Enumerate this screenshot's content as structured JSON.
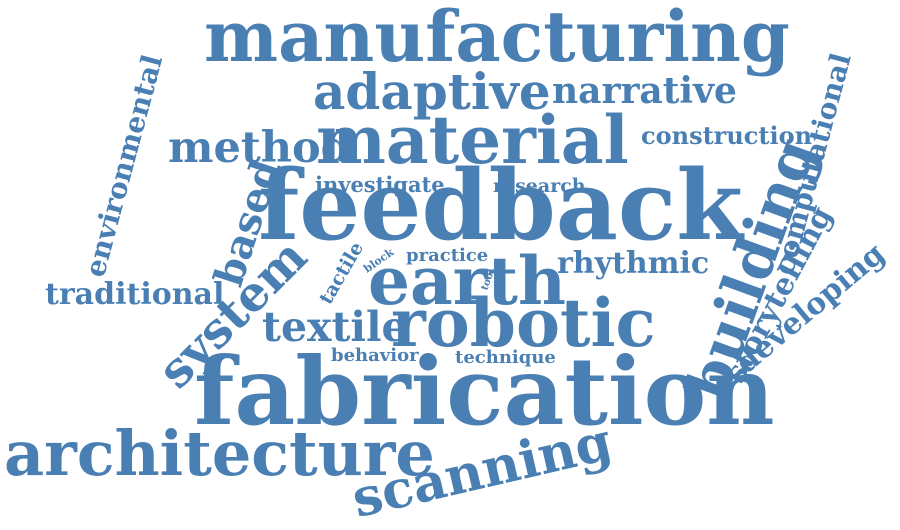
{
  "theme": {
    "word_color": "#4a7fb3",
    "background": "#ffffff"
  },
  "words": [
    {
      "text": "manufacturing",
      "emphasis": "large"
    },
    {
      "text": "adaptive",
      "emphasis": "medium"
    },
    {
      "text": "narrative",
      "emphasis": "medium"
    },
    {
      "text": "environmental",
      "emphasis": "small"
    },
    {
      "text": "method",
      "emphasis": "medium"
    },
    {
      "text": "material",
      "emphasis": "large"
    },
    {
      "text": "construction",
      "emphasis": "small"
    },
    {
      "text": "computational",
      "emphasis": "small"
    },
    {
      "text": "investigate",
      "emphasis": "small"
    },
    {
      "text": "research",
      "emphasis": "small"
    },
    {
      "text": "feedback",
      "emphasis": "largest"
    },
    {
      "text": "based",
      "emphasis": "medium"
    },
    {
      "text": "building",
      "emphasis": "large"
    },
    {
      "text": "tactile",
      "emphasis": "small"
    },
    {
      "text": "block",
      "emphasis": "tiny"
    },
    {
      "text": "practice",
      "emphasis": "small"
    },
    {
      "text": "tool",
      "emphasis": "tiny"
    },
    {
      "text": "earth",
      "emphasis": "large"
    },
    {
      "text": "rhythmic",
      "emphasis": "small"
    },
    {
      "text": "storytelling",
      "emphasis": "small"
    },
    {
      "text": "developing",
      "emphasis": "small"
    },
    {
      "text": "traditional",
      "emphasis": "small"
    },
    {
      "text": "system",
      "emphasis": "medium"
    },
    {
      "text": "textile",
      "emphasis": "medium"
    },
    {
      "text": "robotic",
      "emphasis": "large"
    },
    {
      "text": "behavior",
      "emphasis": "small"
    },
    {
      "text": "technique",
      "emphasis": "small"
    },
    {
      "text": "fabrication",
      "emphasis": "largest"
    },
    {
      "text": "architecture",
      "emphasis": "large"
    },
    {
      "text": "scanning",
      "emphasis": "medium"
    }
  ]
}
